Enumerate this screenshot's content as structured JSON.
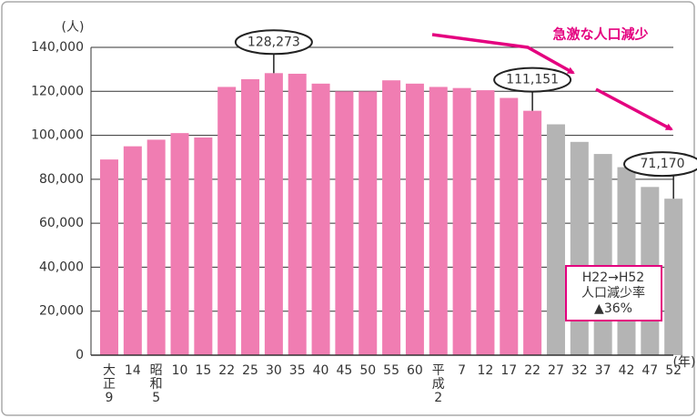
{
  "chart_data": {
    "type": "bar",
    "y_unit": "(人)",
    "x_unit": "(年)",
    "annotation": "急激な人口減少",
    "box_lines": [
      "H22→H52",
      "人口減少率",
      "▲36%"
    ],
    "categories": [
      "大正9",
      "14",
      "昭和5",
      "10",
      "15",
      "22",
      "25",
      "30",
      "35",
      "40",
      "45",
      "50",
      "55",
      "60",
      "平成2",
      "7",
      "12",
      "17",
      "22",
      "27",
      "32",
      "37",
      "42",
      "47",
      "52"
    ],
    "values": [
      89000,
      95000,
      98000,
      101000,
      99000,
      122000,
      125500,
      128273,
      128000,
      123500,
      120000,
      120000,
      125000,
      123500,
      122000,
      121500,
      120500,
      117000,
      111151,
      105000,
      97000,
      91500,
      85500,
      76500,
      71170
    ],
    "value_labels": [
      null,
      null,
      null,
      null,
      null,
      null,
      null,
      "128,273",
      null,
      null,
      null,
      null,
      null,
      null,
      null,
      null,
      null,
      null,
      "111,151",
      null,
      null,
      null,
      null,
      null,
      "71,170"
    ],
    "colors": [
      "#f07db2",
      "#f07db2",
      "#f07db2",
      "#f07db2",
      "#f07db2",
      "#f07db2",
      "#f07db2",
      "#f07db2",
      "#f07db2",
      "#f07db2",
      "#f07db2",
      "#f07db2",
      "#f07db2",
      "#f07db2",
      "#f07db2",
      "#f07db2",
      "#f07db2",
      "#f07db2",
      "#f07db2",
      "#b4b4b4",
      "#b4b4b4",
      "#b4b4b4",
      "#b4b4b4",
      "#b4b4b4",
      "#b4b4b4"
    ],
    "ylim": [
      0,
      140000
    ],
    "yticks": [
      0,
      {
        "value": 20000,
        "label": "20,000"
      },
      {
        "value": 40000,
        "label": "40,000"
      },
      {
        "value": 60000,
        "label": "60,000"
      },
      {
        "value": 80000,
        "label": "80,000"
      },
      {
        "value": 100000,
        "label": "100,000"
      },
      {
        "value": 120000,
        "label": "120,000"
      },
      {
        "value": 140000,
        "label": "140,000"
      }
    ],
    "grid": true
  }
}
